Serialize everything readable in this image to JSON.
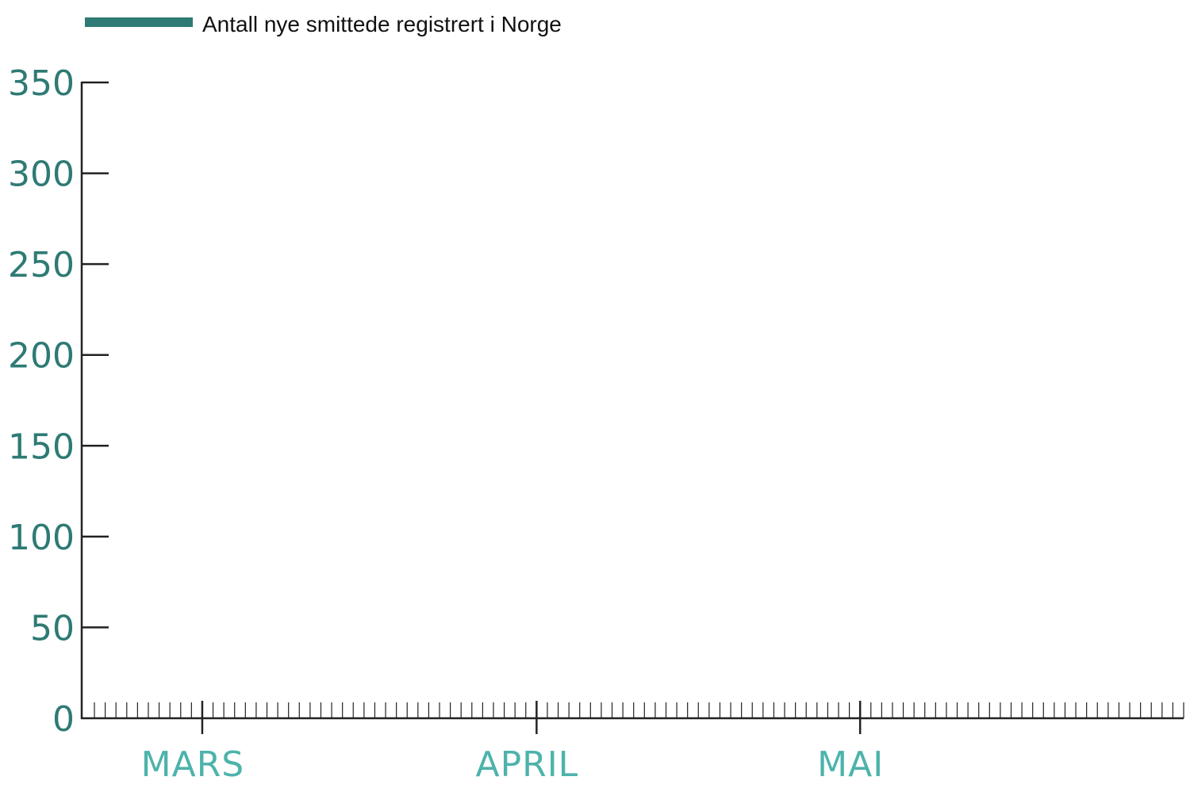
{
  "chart_data": {
    "type": "line",
    "title": "",
    "xlabel": "",
    "ylabel": "",
    "ylim": [
      0,
      350
    ],
    "yticks": [
      0,
      50,
      100,
      150,
      200,
      250,
      300,
      350
    ],
    "ytick_labels": [
      "0",
      "50",
      "100",
      "150",
      "200",
      "250",
      "300",
      "350"
    ],
    "x_range": [
      "2020-02-20",
      "2020-05-31"
    ],
    "x_month_ticks": [
      {
        "date": "2020-03-01",
        "label": "MARS"
      },
      {
        "date": "2020-04-01",
        "label": "APRIL"
      },
      {
        "date": "2020-05-01",
        "label": "MAI"
      }
    ],
    "x_minor_tick_unit": "day",
    "grid": false,
    "legend_placement": "top-left",
    "series": [
      {
        "name": "Antall nye smittede registrert i Norge",
        "values": []
      }
    ]
  },
  "colors": {
    "series": "#2e7a74",
    "ytick_label": "#2e7a74",
    "month_label": "#4db3ab",
    "axis": "#222222"
  }
}
